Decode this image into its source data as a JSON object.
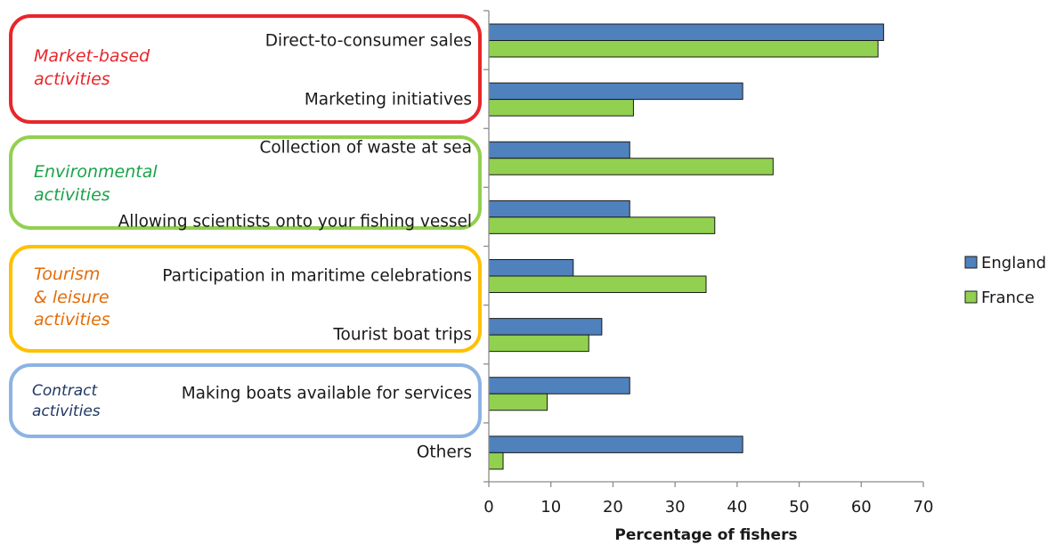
{
  "chart_data": {
    "type": "bar",
    "orientation": "horizontal",
    "xlabel": "Percentage of fishers",
    "xlim": [
      0,
      70
    ],
    "xticks": [
      0,
      10,
      20,
      30,
      40,
      50,
      60,
      70
    ],
    "grid": false,
    "legend_position": "right",
    "categories": [
      "Direct-to-consumer sales",
      "Marketing initiatives",
      "Collection of waste at sea",
      "Allowing scientists onto your fishing vessel",
      "Participation in maritime celebrations",
      "Tourist boat trips",
      "Making boats available for services",
      "Others"
    ],
    "series": [
      {
        "name": "England",
        "color": "#4f81bd",
        "values": [
          63.6,
          40.9,
          22.7,
          22.7,
          13.6,
          18.2,
          22.7,
          40.9
        ]
      },
      {
        "name": "France",
        "color": "#92d050",
        "values": [
          62.7,
          23.3,
          45.8,
          36.4,
          35.0,
          16.1,
          9.4,
          2.3
        ]
      }
    ],
    "groups": [
      {
        "label": "Market-based\nactivities",
        "label_color": "#e8262a",
        "border_color": "#e8262a",
        "categories": [
          0,
          1
        ]
      },
      {
        "label": "Environmental\nactivities",
        "label_color": "#1aa34a",
        "border_color": "#92d050",
        "categories": [
          2,
          3
        ]
      },
      {
        "label": "Tourism\n& leisure\nactivities",
        "label_color": "#e36c09",
        "border_color": "#ffc000",
        "categories": [
          4,
          5
        ]
      },
      {
        "label": "Contract\nactivities",
        "label_color": "#1f3864",
        "border_color": "#8db3e2",
        "categories": [
          6
        ]
      }
    ]
  }
}
